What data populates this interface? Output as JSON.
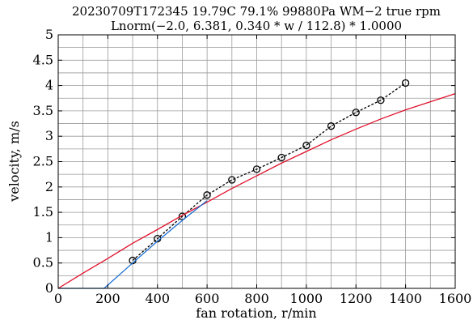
{
  "chart_data": {
    "type": "line",
    "title_lines": [
      "20230709T172345 19.79C 79.1% 99880Pa WM−2 true rpm",
      "Lnorm(−2.0, 6.381, 0.340 * w / 112.8) * 1.0000"
    ],
    "xlabel": "fan rotation, r/min",
    "ylabel": "velocity, m/s",
    "xlim": [
      0,
      1600
    ],
    "ylim": [
      0,
      5
    ],
    "x_ticks": [
      0,
      200,
      400,
      600,
      800,
      1000,
      1200,
      1400,
      1600
    ],
    "x_tick_labels": [
      "0",
      "200",
      "400",
      "600",
      "800",
      "1000",
      "1200",
      "1400",
      "1600"
    ],
    "y_ticks": [
      0,
      0.5,
      1,
      1.5,
      2,
      2.5,
      3,
      3.5,
      4,
      4.5,
      5
    ],
    "y_tick_labels": [
      "0",
      "0.5",
      "1",
      "1.5",
      "2",
      "2.5",
      "3",
      "3.5",
      "4",
      "4.5",
      "5"
    ],
    "x_grid_step": 100,
    "y_grid_step": 0.25,
    "grid": true,
    "series": [
      {
        "style": "dashed-circle-markers",
        "color": "#000000",
        "x": [
          300,
          400,
          500,
          600,
          700,
          800,
          900,
          1000,
          1100,
          1200,
          1300,
          1400
        ],
        "y": [
          0.55,
          0.98,
          1.42,
          1.84,
          2.14,
          2.35,
          2.58,
          2.82,
          3.2,
          3.47,
          3.71,
          4.05
        ]
      },
      {
        "style": "solid",
        "color": "#e0102a",
        "x": [
          0,
          100,
          200,
          300,
          400,
          500,
          600,
          700,
          800,
          900,
          1000,
          1100,
          1200,
          1300,
          1400,
          1500,
          1600
        ],
        "y": [
          0,
          0.3,
          0.59,
          0.89,
          1.16,
          1.44,
          1.7,
          1.97,
          2.22,
          2.47,
          2.7,
          2.93,
          3.14,
          3.34,
          3.52,
          3.68,
          3.84
        ]
      },
      {
        "style": "solid",
        "color": "#1a6fd4",
        "x": [
          0,
          185,
          300,
          400,
          500,
          600
        ],
        "y": [
          0,
          0,
          0.5,
          0.93,
          1.34,
          1.73
        ]
      }
    ]
  }
}
